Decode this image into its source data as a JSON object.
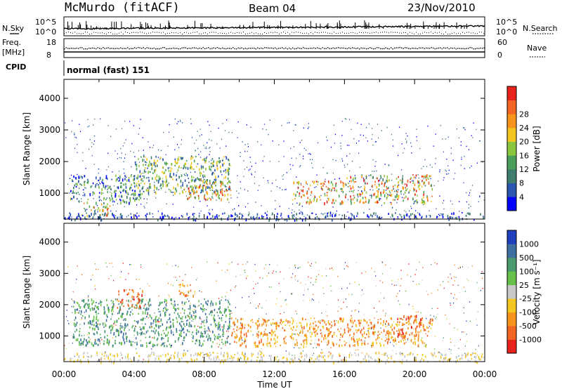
{
  "header": {
    "station": "McMurdo (fitACF)",
    "beam": "Beam 04",
    "date": "23/Nov/2010"
  },
  "top_panels": {
    "nsky_label": "N.Sky",
    "nsky_ticks": [
      "10^5",
      "10^0"
    ],
    "nsearch_label": "N.Search",
    "nsearch_ticks": [
      "10^5",
      "10^0"
    ],
    "freq_label": "Freq.",
    "freq_unit": "[MHz]",
    "freq_ticks": [
      "18",
      "8"
    ],
    "nave_label": "Nave",
    "nave_ticks": [
      "60",
      "0"
    ],
    "cpid_label": "CPID",
    "cpid_value": "normal (fast) 151"
  },
  "chart_data": [
    {
      "type": "heatmap",
      "panel": "power",
      "ylabel": "Slant Range [km]",
      "ylim": [
        180,
        4600
      ],
      "yticks": [
        "1000",
        "2000",
        "3000",
        "4000"
      ],
      "colorbar_label": "Power [dB]",
      "colorbar_ticks": [
        "4",
        "8",
        "12",
        "16",
        "20",
        "24",
        "28"
      ],
      "colorscale": [
        "#0000ff",
        "#2a55b0",
        "#3f7d6f",
        "#4aa05a",
        "#8cc63f",
        "#f4c720",
        "#f7941d",
        "#f26522",
        "#e8221c"
      ],
      "echo_regions": [
        {
          "t": [
            1.0,
            2.6
          ],
          "r": [
            300,
            700
          ],
          "level": "med-high"
        },
        {
          "t": [
            0.3,
            4.5
          ],
          "r": [
            700,
            1600
          ],
          "level": "low-med"
        },
        {
          "t": [
            4.0,
            9.5
          ],
          "r": [
            1000,
            2200
          ],
          "level": "med"
        },
        {
          "t": [
            7.0,
            9.5
          ],
          "r": [
            800,
            1500
          ],
          "level": "high"
        },
        {
          "t": [
            13.0,
            16.0
          ],
          "r": [
            700,
            1400
          ],
          "level": "high"
        },
        {
          "t": [
            16.0,
            21.0
          ],
          "r": [
            700,
            1600
          ],
          "level": "med-high"
        },
        {
          "t": [
            0.0,
            24.0
          ],
          "r": [
            180,
            400
          ],
          "level": "low"
        }
      ]
    },
    {
      "type": "heatmap",
      "panel": "velocity",
      "xlabel": "Time UT",
      "xticks": [
        "00:00",
        "04:00",
        "08:00",
        "12:00",
        "16:00",
        "20:00",
        "00:00"
      ],
      "ylabel": "Slant Range [km]",
      "ylim": [
        180,
        4600
      ],
      "yticks": [
        "1000",
        "2000",
        "3000",
        "4000"
      ],
      "colorbar_label": "Velocity [m s⁻¹]",
      "colorbar_ticks": [
        "1000",
        "500",
        "100",
        "25",
        "-25",
        "-100",
        "-500",
        "-1000"
      ],
      "colorscale": [
        "#1f3fbf",
        "#3f6fa0",
        "#4a9a70",
        "#67c04a",
        "#c8c8c8",
        "#f4c720",
        "#f7941d",
        "#f26522",
        "#e8221c"
      ],
      "echo_regions": [
        {
          "t": [
            0.5,
            9.5
          ],
          "r": [
            700,
            2200
          ],
          "level": "positive"
        },
        {
          "t": [
            3.0,
            4.5
          ],
          "r": [
            1900,
            2500
          ],
          "level": "strong-negative"
        },
        {
          "t": [
            6.5,
            7.5
          ],
          "r": [
            2300,
            2700
          ],
          "level": "negative"
        },
        {
          "t": [
            9.5,
            21.0
          ],
          "r": [
            700,
            1600
          ],
          "level": "negative"
        },
        {
          "t": [
            19.0,
            20.5
          ],
          "r": [
            1000,
            1700
          ],
          "level": "strong-negative"
        },
        {
          "t": [
            0.0,
            24.0
          ],
          "r": [
            180,
            500
          ],
          "level": "near-zero"
        }
      ]
    }
  ]
}
